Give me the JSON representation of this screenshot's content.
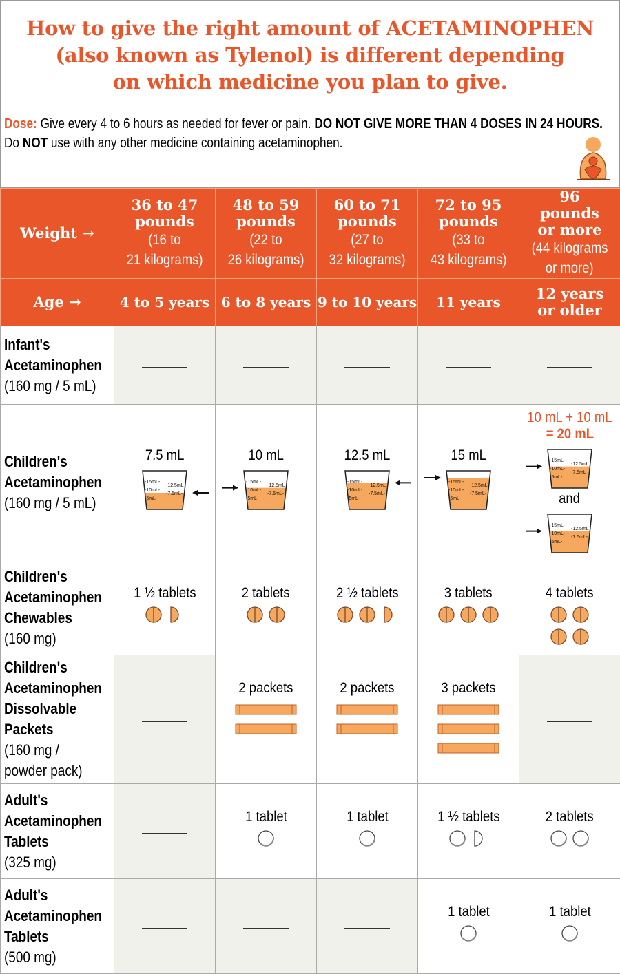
{
  "title": {
    "lines": [
      "How to give the right amount of ACETAMINOPHEN",
      "(also known as Tylenol) is different depending",
      "on which medicine you plan to give."
    ]
  },
  "dose": {
    "label": "Dose:",
    "text1": " Give every 4 to 6 hours as needed for fever or pain. ",
    "bold1": "DO NOT GIVE MORE THAN 4 DOSES IN 24 HOURS.",
    "text2a": "Do ",
    "bold2": "NOT",
    "text2b": " use with any other medicine containing acetaminophen.",
    "logo_icon": "parent-child-logo-icon"
  },
  "colors": {
    "accent": "#e8562a",
    "fill": "#f6a85e",
    "grey": "#f1f1ec"
  },
  "header": {
    "weight_label": "Weight →",
    "age_label": "Age →",
    "weights": [
      {
        "big": "36 to 47 pounds",
        "small": [
          "(16 to",
          "21 kilograms)"
        ]
      },
      {
        "big": "48 to 59 pounds",
        "small": [
          "(22 to",
          "26 kilograms)"
        ]
      },
      {
        "big": "60 to 71 pounds",
        "small": [
          "(27 to",
          "32 kilograms)"
        ]
      },
      {
        "big": "72 to 95 pounds",
        "small": [
          "(33 to",
          "43 kilograms)"
        ]
      },
      {
        "big": "96 pounds or more",
        "small": [
          "(44 kilograms",
          "or more)"
        ]
      }
    ],
    "ages": [
      "4 to 5 years",
      "6 to 8 years",
      "9 to 10 years",
      "11 years",
      "12 years or older"
    ]
  },
  "cup_marks": [
    "15mL",
    "12.5mL",
    "10mL",
    "7.5mL",
    "5mL"
  ],
  "rows": [
    {
      "name": [
        "Infant's",
        "Acetaminophen"
      ],
      "strength": [
        "(160 mg / 5 mL)"
      ],
      "h": 114,
      "cells": [
        {
          "type": "dash"
        },
        {
          "type": "dash"
        },
        {
          "type": "dash"
        },
        {
          "type": "dash"
        },
        {
          "type": "dash"
        }
      ]
    },
    {
      "name": [
        "Children's",
        "Acetaminophen"
      ],
      "strength": [
        "(160 mg / 5 mL)"
      ],
      "h": 226,
      "cells": [
        {
          "type": "cup",
          "label": "7.5 mL",
          "ml": 7.5,
          "arrow": "right"
        },
        {
          "type": "cup",
          "label": "10 mL",
          "ml": 10,
          "arrow": "left"
        },
        {
          "type": "cup",
          "label": "12.5 mL",
          "ml": 12.5,
          "arrow": "right"
        },
        {
          "type": "cup",
          "label": "15 mL",
          "ml": 15,
          "arrow": "left"
        },
        {
          "type": "cup2",
          "label": "10 mL + 10 mL",
          "label2": "= 20 mL",
          "and": "and",
          "ml": 10,
          "arrow": "left"
        }
      ]
    },
    {
      "name": [
        "Children's",
        "Acetaminophen",
        "Chewables"
      ],
      "strength": [
        "(160 mg)"
      ],
      "h": 138,
      "cells": [
        {
          "type": "tabs",
          "label": "1 ½ tablets",
          "icons": [
            "full",
            "half"
          ],
          "color": "orange"
        },
        {
          "type": "tabs",
          "label": "2 tablets",
          "icons": [
            "full",
            "full"
          ],
          "color": "orange"
        },
        {
          "type": "tabs",
          "label": "2 ½ tablets",
          "icons": [
            "full",
            "full",
            "half"
          ],
          "color": "orange"
        },
        {
          "type": "tabs",
          "label": "3 tablets",
          "icons": [
            "full",
            "full",
            "full"
          ],
          "color": "orange"
        },
        {
          "type": "tabs",
          "label": "4 tablets",
          "icons": [
            "full",
            "full",
            "full",
            "full"
          ],
          "color": "orange",
          "grid": true
        }
      ]
    },
    {
      "name": [
        "Children's",
        "Acetaminophen",
        "Dissolvable",
        "Packets"
      ],
      "strength": [
        "(160 mg /",
        "powder pack)"
      ],
      "h": 187,
      "cells": [
        {
          "type": "dash"
        },
        {
          "type": "packets",
          "label": "2 packets",
          "count": 2
        },
        {
          "type": "packets",
          "label": "2 packets",
          "count": 2
        },
        {
          "type": "packets",
          "label": "3 packets",
          "count": 3
        },
        {
          "type": "dash"
        }
      ]
    },
    {
      "name": [
        "Adult's",
        "Acetaminophen",
        "Tablets"
      ],
      "strength": [
        "(325 mg)"
      ],
      "h": 138,
      "cells": [
        {
          "type": "dash"
        },
        {
          "type": "tabs",
          "label": "1 tablet",
          "icons": [
            "full"
          ],
          "color": "white"
        },
        {
          "type": "tabs",
          "label": "1 tablet",
          "icons": [
            "full"
          ],
          "color": "white"
        },
        {
          "type": "tabs",
          "label": "1 ½ tablets",
          "icons": [
            "full",
            "half"
          ],
          "color": "white"
        },
        {
          "type": "tabs",
          "label": "2 tablets",
          "icons": [
            "full",
            "full"
          ],
          "color": "white"
        }
      ]
    },
    {
      "name": [
        "Adult's",
        "Acetaminophen",
        "Tablets"
      ],
      "strength": [
        "(500 mg)"
      ],
      "h": 138,
      "cells": [
        {
          "type": "dash"
        },
        {
          "type": "dash"
        },
        {
          "type": "dash"
        },
        {
          "type": "tabs",
          "label": "1 tablet",
          "icons": [
            "full"
          ],
          "color": "white"
        },
        {
          "type": "tabs",
          "label": "1 tablet",
          "icons": [
            "full"
          ],
          "color": "white"
        }
      ]
    }
  ]
}
